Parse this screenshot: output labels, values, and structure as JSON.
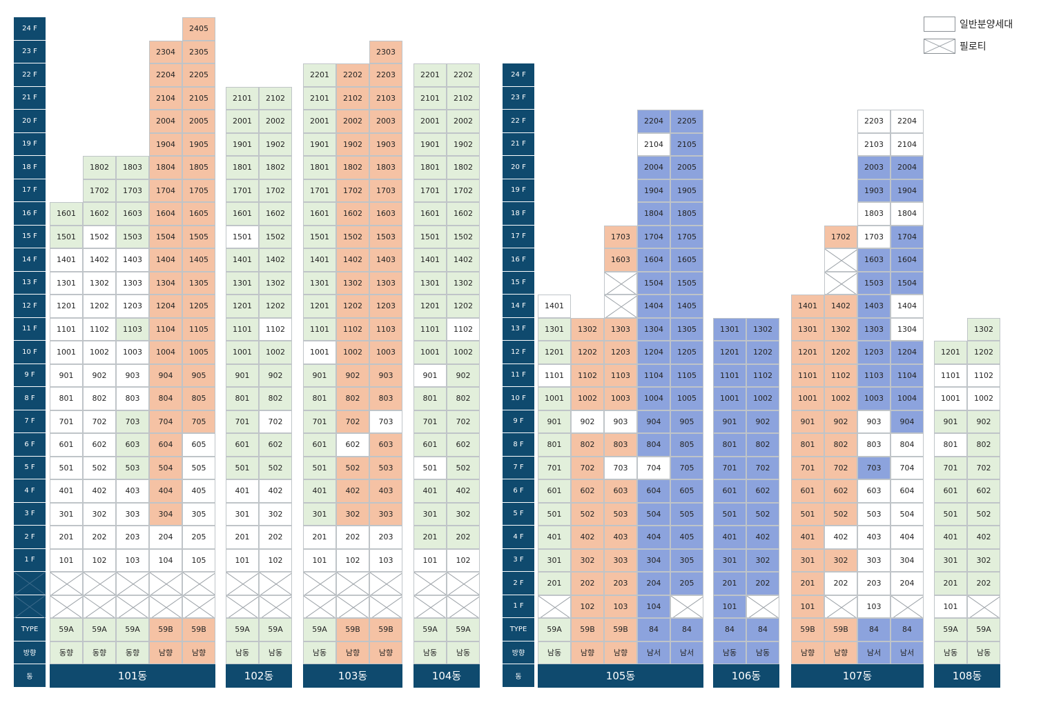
{
  "legend": [
    {
      "key": "white",
      "label": "일반분양세대"
    },
    {
      "key": "piloti",
      "label": "필로티"
    }
  ],
  "colors": {
    "green": "#e2efdb",
    "orange": "#f5c2a4",
    "blue": "#8ca3dd",
    "white": "#ffffff",
    "navy": "#0f4a6e"
  },
  "row_labels": {
    "type": "TYPE",
    "dir": "방향",
    "dong": "동"
  },
  "left_floors": [
    "24 F",
    "23 F",
    "22 F",
    "21 F",
    "20 F",
    "19 F",
    "18 F",
    "17 F",
    "16 F",
    "15 F",
    "14 F",
    "13 F",
    "12 F",
    "11 F",
    "10 F",
    "9 F",
    "8 F",
    "7 F",
    "6 F",
    "5 F",
    "4 F",
    "3 F",
    "2 F",
    "1 F"
  ],
  "right_floors": [
    "24 F",
    "23 F",
    "22 F",
    "21 F",
    "20 F",
    "19 F",
    "18 F",
    "17 F",
    "16 F",
    "15 F",
    "14 F",
    "13 F",
    "12 F",
    "11 F",
    "10 F",
    "9 F",
    "8 F",
    "7 F",
    "6 F",
    "5 F",
    "4 F",
    "3 F",
    "2 F",
    "1 F"
  ],
  "buildings": [
    {
      "name": "101동",
      "group": "left",
      "columns": [
        {
          "type": "59A",
          "dir": "동향",
          "top": 16,
          "piloti": 2,
          "cells": {
            "16": "g",
            "15": "g",
            "14": "w",
            "13": "w",
            "12": "w",
            "11": "w",
            "10": "w",
            "9": "w",
            "8": "w",
            "7": "w",
            "6": "w",
            "5": "w",
            "4": "w",
            "3": "w",
            "2": "w",
            "1": "w"
          }
        },
        {
          "type": "59A",
          "dir": "동향",
          "top": 18,
          "piloti": 2,
          "cells": {
            "18": "g",
            "17": "g",
            "16": "g",
            "15": "w",
            "14": "w",
            "13": "w",
            "12": "w",
            "11": "w",
            "10": "w",
            "9": "w",
            "8": "w",
            "7": "w",
            "6": "w",
            "5": "w",
            "4": "w",
            "3": "w",
            "2": "w",
            "1": "w"
          }
        },
        {
          "type": "59A",
          "dir": "동향",
          "top": 18,
          "piloti": 2,
          "cells": {
            "18": "g",
            "17": "g",
            "16": "g",
            "15": "g",
            "14": "w",
            "13": "w",
            "12": "w",
            "11": "g",
            "10": "w",
            "9": "w",
            "8": "w",
            "7": "g",
            "6": "g",
            "5": "g",
            "4": "w",
            "3": "w",
            "2": "w",
            "1": "w"
          }
        },
        {
          "type": "59B",
          "dir": "남향",
          "top": 23,
          "piloti": 2,
          "cells": {
            "23": "o",
            "22": "o",
            "21": "o",
            "20": "o",
            "19": "o",
            "18": "o",
            "17": "o",
            "16": "o",
            "15": "o",
            "14": "o",
            "13": "o",
            "12": "o",
            "11": "o",
            "10": "o",
            "9": "o",
            "8": "o",
            "7": "o",
            "6": "o",
            "5": "o",
            "4": "o",
            "3": "o",
            "2": "w",
            "1": "w"
          }
        },
        {
          "type": "59B",
          "dir": "남향",
          "top": 24,
          "piloti": 2,
          "cells": {
            "24": "o",
            "23": "o",
            "22": "o",
            "21": "o",
            "20": "o",
            "19": "o",
            "18": "o",
            "17": "o",
            "16": "o",
            "15": "o",
            "14": "o",
            "13": "o",
            "12": "o",
            "11": "o",
            "10": "o",
            "9": "o",
            "8": "o",
            "7": "o",
            "6": "w",
            "5": "w",
            "4": "w",
            "3": "w",
            "2": "w",
            "1": "w"
          }
        }
      ]
    },
    {
      "name": "102동",
      "group": "left",
      "columns": [
        {
          "type": "59A",
          "dir": "남동",
          "top": 21,
          "piloti": 2,
          "cells": {
            "21": "g",
            "20": "g",
            "19": "g",
            "18": "g",
            "17": "g",
            "16": "g",
            "15": "w",
            "14": "g",
            "13": "g",
            "12": "g",
            "11": "g",
            "10": "g",
            "9": "g",
            "8": "g",
            "7": "g",
            "6": "g",
            "5": "g",
            "4": "w",
            "3": "w",
            "2": "w",
            "1": "w"
          }
        },
        {
          "type": "59A",
          "dir": "남동",
          "top": 21,
          "piloti": 2,
          "cells": {
            "21": "g",
            "20": "g",
            "19": "g",
            "18": "g",
            "17": "g",
            "16": "g",
            "15": "g",
            "14": "g",
            "13": "g",
            "12": "g",
            "11": "w",
            "10": "g",
            "9": "g",
            "8": "g",
            "7": "w",
            "6": "g",
            "5": "g",
            "4": "w",
            "3": "w",
            "2": "w",
            "1": "w"
          }
        }
      ]
    },
    {
      "name": "103동",
      "group": "left",
      "columns": [
        {
          "type": "59A",
          "dir": "남동",
          "top": 22,
          "piloti": 2,
          "cells": {
            "22": "g",
            "21": "g",
            "20": "g",
            "19": "g",
            "18": "g",
            "17": "g",
            "16": "g",
            "15": "g",
            "14": "g",
            "13": "g",
            "12": "g",
            "11": "g",
            "10": "w",
            "9": "g",
            "8": "g",
            "7": "g",
            "6": "g",
            "5": "g",
            "4": "g",
            "3": "g",
            "2": "w",
            "1": "w"
          }
        },
        {
          "type": "59B",
          "dir": "남향",
          "top": 22,
          "piloti": 2,
          "cells": {
            "22": "o",
            "21": "o",
            "20": "o",
            "19": "o",
            "18": "o",
            "17": "o",
            "16": "o",
            "15": "o",
            "14": "o",
            "13": "o",
            "12": "o",
            "11": "o",
            "10": "o",
            "9": "o",
            "8": "o",
            "7": "o",
            "6": "w",
            "5": "o",
            "4": "o",
            "3": "o",
            "2": "w",
            "1": "w"
          }
        },
        {
          "type": "59B",
          "dir": "남향",
          "top": 23,
          "piloti": 2,
          "cells": {
            "23": "o",
            "22": "o",
            "21": "o",
            "20": "o",
            "19": "o",
            "18": "o",
            "17": "o",
            "16": "o",
            "15": "o",
            "14": "o",
            "13": "o",
            "12": "o",
            "11": "o",
            "10": "o",
            "9": "o",
            "8": "o",
            "7": "w",
            "6": "o",
            "5": "o",
            "4": "o",
            "3": "o",
            "2": "w",
            "1": "w"
          }
        }
      ]
    },
    {
      "name": "104동",
      "group": "left",
      "columns": [
        {
          "type": "59A",
          "dir": "남동",
          "top": 22,
          "piloti": 2,
          "cells": {
            "22": "g",
            "21": "g",
            "20": "g",
            "19": "g",
            "18": "g",
            "17": "g",
            "16": "g",
            "15": "g",
            "14": "g",
            "13": "g",
            "12": "g",
            "11": "g",
            "10": "g",
            "9": "w",
            "8": "g",
            "7": "g",
            "6": "g",
            "5": "w",
            "4": "g",
            "3": "g",
            "2": "g",
            "1": "w"
          }
        },
        {
          "type": "59A",
          "dir": "남동",
          "top": 22,
          "piloti": 2,
          "cells": {
            "22": "g",
            "21": "g",
            "20": "g",
            "19": "g",
            "18": "g",
            "17": "g",
            "16": "g",
            "15": "g",
            "14": "g",
            "13": "g",
            "12": "g",
            "11": "w",
            "10": "g",
            "9": "g",
            "8": "g",
            "7": "g",
            "6": "g",
            "5": "g",
            "4": "g",
            "3": "g",
            "2": "g",
            "1": "w"
          }
        }
      ]
    },
    {
      "name": "105동",
      "group": "right",
      "columns": [
        {
          "type": "59A",
          "dir": "남동",
          "cells": {
            "14": "w",
            "13": "g",
            "12": "g",
            "11": "w",
            "10": "g",
            "9": "g",
            "8": "g",
            "7": "g",
            "6": "g",
            "5": "g",
            "4": "g",
            "3": "g",
            "2": "g",
            "1": "x"
          }
        },
        {
          "type": "59B",
          "dir": "남향",
          "cells": {
            "13": "o",
            "12": "o",
            "11": "o",
            "10": "o",
            "9": "w",
            "8": "o",
            "7": "o",
            "6": "o",
            "5": "o",
            "4": "o",
            "3": "o",
            "2": "o",
            "1": "o"
          }
        },
        {
          "type": "59B",
          "dir": "남향",
          "cells": {
            "17": "o",
            "16": "o",
            "15": "x",
            "14": "x",
            "13": "o",
            "12": "o",
            "11": "o",
            "10": "o",
            "9": "w",
            "8": "o",
            "7": "w",
            "6": "o",
            "5": "o",
            "4": "o",
            "3": "o",
            "2": "o",
            "1": "o"
          }
        },
        {
          "type": "84",
          "dir": "남서",
          "cells": {
            "22": "b",
            "21": "w",
            "20": "b",
            "19": "b",
            "18": "b",
            "17": "b",
            "16": "b",
            "15": "b",
            "14": "b",
            "13": "b",
            "12": "b",
            "11": "b",
            "10": "b",
            "9": "b",
            "8": "b",
            "7": "w",
            "6": "b",
            "5": "b",
            "4": "b",
            "3": "b",
            "2": "b",
            "1": "b"
          }
        },
        {
          "type": "84",
          "dir": "남서",
          "cells": {
            "22": "b",
            "21": "b",
            "20": "b",
            "19": "b",
            "18": "b",
            "17": "b",
            "16": "b",
            "15": "b",
            "14": "b",
            "13": "b",
            "12": "b",
            "11": "b",
            "10": "b",
            "9": "b",
            "8": "b",
            "7": "b",
            "6": "b",
            "5": "b",
            "4": "b",
            "3": "b",
            "2": "b",
            "1": "x"
          }
        }
      ]
    },
    {
      "name": "106동",
      "group": "right",
      "columns": [
        {
          "type": "84",
          "dir": "남동",
          "cells": {
            "13": "b",
            "12": "b",
            "11": "b",
            "10": "b",
            "9": "b",
            "8": "b",
            "7": "b",
            "6": "b",
            "5": "b",
            "4": "b",
            "3": "b",
            "2": "b",
            "1": "b"
          }
        },
        {
          "type": "84",
          "dir": "남동",
          "cells": {
            "13": "b",
            "12": "b",
            "11": "b",
            "10": "b",
            "9": "b",
            "8": "b",
            "7": "b",
            "6": "b",
            "5": "b",
            "4": "b",
            "3": "b",
            "2": "b",
            "1": "x"
          }
        }
      ]
    },
    {
      "name": "107동",
      "group": "right",
      "columns": [
        {
          "type": "59B",
          "dir": "남향",
          "cells": {
            "14": "o",
            "13": "o",
            "12": "o",
            "11": "o",
            "10": "o",
            "9": "o",
            "8": "o",
            "7": "o",
            "6": "o",
            "5": "o",
            "4": "o",
            "3": "o",
            "2": "o",
            "1": "o"
          }
        },
        {
          "type": "59B",
          "dir": "남향",
          "cells": {
            "17": "o",
            "16": "x",
            "15": "x",
            "14": "o",
            "13": "o",
            "12": "o",
            "11": "o",
            "10": "o",
            "9": "o",
            "8": "o",
            "7": "o",
            "6": "o",
            "5": "o",
            "4": "w",
            "3": "o",
            "2": "w",
            "1": "x"
          }
        },
        {
          "type": "84",
          "dir": "남서",
          "cells": {
            "22": "w",
            "21": "w",
            "20": "b",
            "19": "b",
            "18": "w",
            "17": "w",
            "16": "b",
            "15": "b",
            "14": "b",
            "13": "b",
            "12": "b",
            "11": "b",
            "10": "b",
            "9": "w",
            "8": "w",
            "7": "b",
            "6": "w",
            "5": "w",
            "4": "w",
            "3": "w",
            "2": "w",
            "1": "w"
          }
        },
        {
          "type": "84",
          "dir": "남서",
          "cells": {
            "22": "w",
            "21": "w",
            "20": "b",
            "19": "b",
            "18": "w",
            "17": "b",
            "16": "b",
            "15": "b",
            "14": "w",
            "13": "w",
            "12": "b",
            "11": "b",
            "10": "b",
            "9": "b",
            "8": "w",
            "7": "w",
            "6": "w",
            "5": "w",
            "4": "w",
            "3": "w",
            "2": "w",
            "1": "x"
          }
        }
      ]
    },
    {
      "name": "108동",
      "group": "right",
      "columns": [
        {
          "type": "59A",
          "dir": "남동",
          "cells": {
            "12": "g",
            "11": "w",
            "10": "w",
            "9": "g",
            "8": "w",
            "7": "g",
            "6": "g",
            "5": "g",
            "4": "g",
            "3": "g",
            "2": "g",
            "1": "w"
          }
        },
        {
          "type": "59A",
          "dir": "남동",
          "cells": {
            "13": "g",
            "12": "g",
            "11": "w",
            "10": "w",
            "9": "g",
            "8": "g",
            "7": "g",
            "6": "g",
            "5": "g",
            "4": "g",
            "3": "g",
            "2": "g",
            "1": "x"
          }
        }
      ]
    }
  ]
}
